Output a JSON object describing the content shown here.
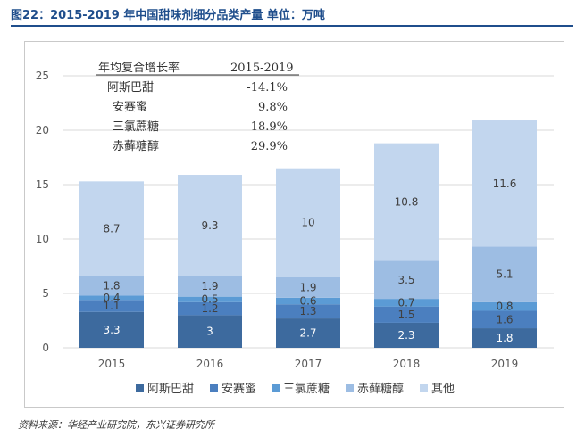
{
  "figure": {
    "title": "图22：2015-2019 年中国甜味剂细分品类产量 单位：万吨",
    "source": "资料来源：华经产业研究院，东兴证券研究所"
  },
  "colors": {
    "title": "#1f4e8c",
    "grid": "#d9d9d9",
    "axis_text": "#595959",
    "label_dark": "#ffffff",
    "label_light": "#404040"
  },
  "cagr_table": {
    "header": [
      "年均复合增长率",
      "2015-2019"
    ],
    "rows": [
      [
        "阿斯巴甜",
        "-14.1%"
      ],
      [
        "安赛蜜",
        "9.8%"
      ],
      [
        "三氯蔗糖",
        "18.9%"
      ],
      [
        "赤藓糖醇",
        "29.9%"
      ]
    ]
  },
  "chart_data": {
    "type": "bar",
    "stacked": true,
    "title": "",
    "xlabel": "",
    "ylabel": "",
    "categories": [
      "2015",
      "2016",
      "2017",
      "2018",
      "2019"
    ],
    "ylim": [
      0,
      25
    ],
    "yticks": [
      0,
      5,
      10,
      15,
      20,
      25
    ],
    "grid": true,
    "legend_position": "bottom",
    "series": [
      {
        "name": "阿斯巴甜",
        "color": "#3d6a9e",
        "values": [
          3.3,
          3,
          2.7,
          2.3,
          1.8
        ],
        "labels": [
          "3.3",
          "3",
          "2.7",
          "2.3",
          "1.8"
        ]
      },
      {
        "name": "安赛蜜",
        "color": "#4b7fbf",
        "values": [
          1.1,
          1.2,
          1.3,
          1.5,
          1.6
        ],
        "labels": [
          "1.1",
          "1.2",
          "1.3",
          "1.5",
          "1.6"
        ]
      },
      {
        "name": "三氯蔗糖",
        "color": "#5b9bd5",
        "values": [
          0.4,
          0.5,
          0.6,
          0.7,
          0.8
        ],
        "labels": [
          "0.4",
          "0.5",
          "0.6",
          "0.7",
          "0.8"
        ]
      },
      {
        "name": "赤藓糖醇",
        "color": "#9dbde3",
        "values": [
          1.8,
          1.9,
          1.9,
          3.5,
          5.1
        ],
        "labels": [
          "1.8",
          "1.9",
          "1.9",
          "3.5",
          "5.1"
        ]
      },
      {
        "name": "其他",
        "color": "#c2d6ee",
        "values": [
          8.7,
          9.3,
          10,
          10.8,
          11.6
        ],
        "labels": [
          "8.7",
          "9.3",
          "10",
          "10.8",
          "11.6"
        ]
      }
    ]
  }
}
